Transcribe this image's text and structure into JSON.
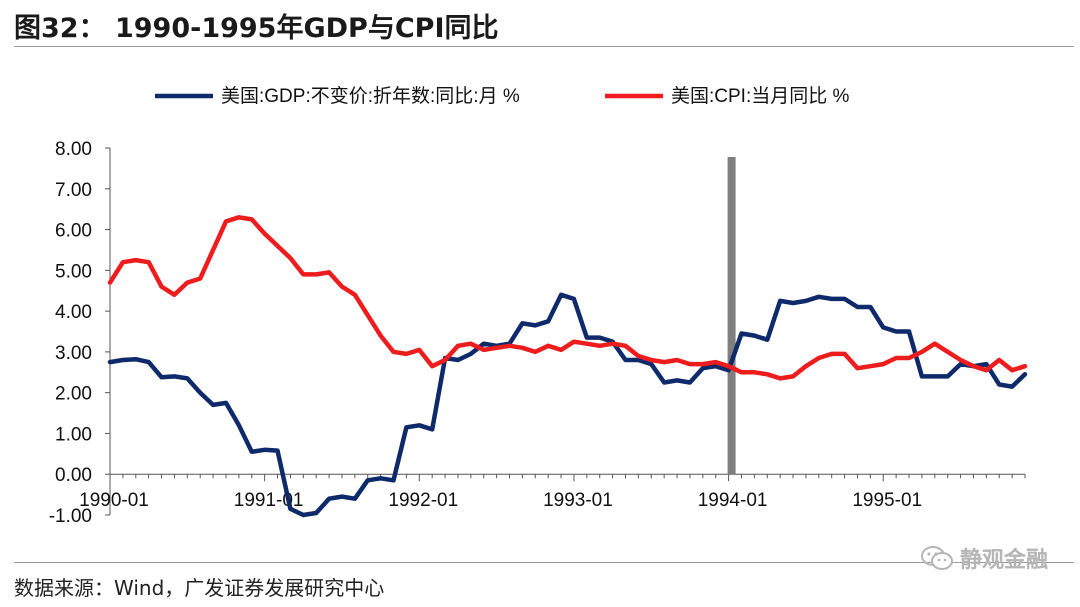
{
  "title": "图32：  1990-1995年GDP与CPI同比",
  "source": "数据来源：Wind，广发证券发展研究中心",
  "watermark": {
    "text": "静观金融",
    "icon": "wechat-icon"
  },
  "chart_data": {
    "type": "line",
    "ylim": [
      -1.0,
      8.0
    ],
    "yticks": [
      "8.00",
      "7.00",
      "6.00",
      "5.00",
      "4.00",
      "3.00",
      "2.00",
      "1.00",
      "0.00",
      "-1.00"
    ],
    "xlim": [
      0,
      71
    ],
    "x_tick_labels": [
      "1990-01",
      "1991-01",
      "1992-01",
      "1993-01",
      "1994-01",
      "1995-01"
    ],
    "grid": false,
    "legend_position": "top",
    "vertical_marker": {
      "label": "1994-01",
      "color": "#7f7f7f"
    },
    "series": [
      {
        "name": "美国:GDP:不变价:折年数:同比:月 %",
        "color": "#0e2a6b",
        "values": [
          2.75,
          2.8,
          2.82,
          2.75,
          2.38,
          2.4,
          2.35,
          2.0,
          1.7,
          1.75,
          1.2,
          0.55,
          0.6,
          0.58,
          -0.85,
          -1.0,
          -0.95,
          -0.6,
          -0.55,
          -0.6,
          -0.15,
          -0.1,
          -0.15,
          1.15,
          1.2,
          1.1,
          2.85,
          2.8,
          2.95,
          3.2,
          3.15,
          3.2,
          3.7,
          3.65,
          3.75,
          4.4,
          4.3,
          3.35,
          3.35,
          3.25,
          2.8,
          2.8,
          2.7,
          2.25,
          2.3,
          2.25,
          2.6,
          2.65,
          2.55,
          3.45,
          3.4,
          3.3,
          4.25,
          4.2,
          4.25,
          4.35,
          4.3,
          4.3,
          4.1,
          4.1,
          3.6,
          3.5,
          3.5,
          2.4,
          2.4,
          2.4,
          2.7,
          2.65,
          2.7,
          2.2,
          2.15,
          2.45
        ]
      },
      {
        "name": "美国:CPI:当月同比 %",
        "color": "#ee1c1c",
        "values": [
          4.7,
          5.2,
          5.25,
          5.2,
          4.6,
          4.4,
          4.7,
          4.8,
          5.5,
          6.2,
          6.3,
          6.25,
          5.9,
          5.6,
          5.3,
          4.9,
          4.9,
          4.95,
          4.6,
          4.4,
          3.9,
          3.4,
          3.0,
          2.95,
          3.05,
          2.65,
          2.8,
          3.15,
          3.2,
          3.05,
          3.1,
          3.15,
          3.1,
          3.0,
          3.15,
          3.05,
          3.25,
          3.2,
          3.15,
          3.2,
          3.15,
          2.9,
          2.8,
          2.75,
          2.8,
          2.7,
          2.7,
          2.75,
          2.65,
          2.5,
          2.5,
          2.45,
          2.35,
          2.4,
          2.65,
          2.85,
          2.95,
          2.95,
          2.6,
          2.65,
          2.7,
          2.85,
          2.85,
          3.0,
          3.2,
          3.0,
          2.8,
          2.65,
          2.55,
          2.8,
          2.55,
          2.65
        ]
      }
    ]
  }
}
